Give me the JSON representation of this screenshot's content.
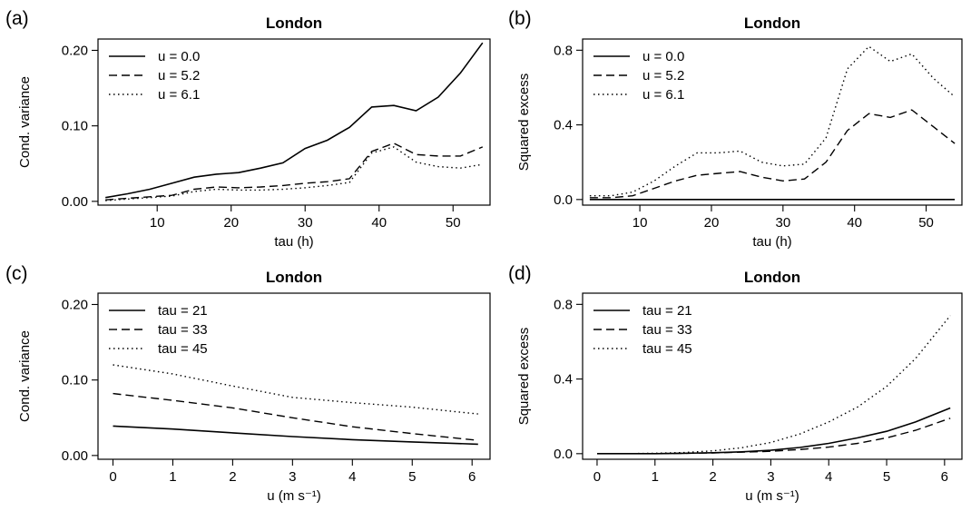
{
  "chart_data": [
    {
      "panel_label": "(a)",
      "type": "line",
      "title": "London",
      "xlabel": "tau (h)",
      "ylabel": "Cond. variance",
      "xlim": [
        2,
        55
      ],
      "ylim": [
        -0.005,
        0.215
      ],
      "xticks": [
        10,
        20,
        30,
        40,
        50
      ],
      "xtick_labels": [
        "10",
        "20",
        "30",
        "40",
        "50"
      ],
      "yticks": [
        0.0,
        0.1,
        0.2
      ],
      "ytick_labels": [
        "0.00",
        "0.10",
        "0.20"
      ],
      "legend_position": "top-left",
      "series": [
        {
          "name": "u = 0.0",
          "style": "solid",
          "x": [
            3,
            6,
            9,
            12,
            15,
            18,
            21,
            24,
            27,
            30,
            33,
            36,
            39,
            42,
            45,
            48,
            51,
            54
          ],
          "y": [
            0.005,
            0.01,
            0.016,
            0.024,
            0.032,
            0.036,
            0.038,
            0.044,
            0.051,
            0.07,
            0.081,
            0.098,
            0.125,
            0.127,
            0.12,
            0.138,
            0.17,
            0.21
          ]
        },
        {
          "name": "u = 5.2",
          "style": "dashed",
          "x": [
            3,
            6,
            9,
            12,
            15,
            18,
            21,
            24,
            27,
            30,
            33,
            36,
            39,
            42,
            45,
            48,
            51,
            54
          ],
          "y": [
            0.002,
            0.004,
            0.006,
            0.008,
            0.016,
            0.019,
            0.018,
            0.019,
            0.021,
            0.024,
            0.026,
            0.03,
            0.066,
            0.077,
            0.062,
            0.06,
            0.06,
            0.072
          ]
        },
        {
          "name": "u = 6.1",
          "style": "dotted",
          "x": [
            3,
            6,
            9,
            12,
            15,
            18,
            21,
            24,
            27,
            30,
            33,
            36,
            39,
            42,
            45,
            48,
            51,
            54
          ],
          "y": [
            0.001,
            0.003,
            0.005,
            0.007,
            0.013,
            0.016,
            0.015,
            0.015,
            0.016,
            0.018,
            0.021,
            0.025,
            0.064,
            0.072,
            0.052,
            0.046,
            0.044,
            0.049
          ]
        }
      ]
    },
    {
      "panel_label": "(b)",
      "type": "line",
      "title": "London",
      "xlabel": "tau (h)",
      "ylabel": "Squared excess",
      "xlim": [
        2,
        55
      ],
      "ylim": [
        -0.03,
        0.86
      ],
      "xticks": [
        10,
        20,
        30,
        40,
        50
      ],
      "xtick_labels": [
        "10",
        "20",
        "30",
        "40",
        "50"
      ],
      "yticks": [
        0.0,
        0.4,
        0.8
      ],
      "ytick_labels": [
        "0.0",
        "0.4",
        "0.8"
      ],
      "legend_position": "top-left",
      "series": [
        {
          "name": "u = 0.0",
          "style": "solid",
          "x": [
            3,
            54
          ],
          "y": [
            0.0,
            0.0
          ]
        },
        {
          "name": "u = 5.2",
          "style": "dashed",
          "x": [
            3,
            6,
            9,
            12,
            15,
            18,
            21,
            24,
            27,
            30,
            33,
            36,
            39,
            42,
            45,
            48,
            51,
            54
          ],
          "y": [
            0.01,
            0.01,
            0.02,
            0.06,
            0.1,
            0.13,
            0.14,
            0.15,
            0.12,
            0.1,
            0.11,
            0.2,
            0.37,
            0.46,
            0.44,
            0.48,
            0.39,
            0.3
          ]
        },
        {
          "name": "u = 6.1",
          "style": "dotted",
          "x": [
            3,
            6,
            9,
            12,
            15,
            18,
            21,
            24,
            27,
            30,
            33,
            36,
            39,
            42,
            45,
            48,
            51,
            54
          ],
          "y": [
            0.02,
            0.02,
            0.04,
            0.1,
            0.18,
            0.25,
            0.25,
            0.26,
            0.2,
            0.18,
            0.19,
            0.33,
            0.7,
            0.82,
            0.74,
            0.78,
            0.65,
            0.55
          ]
        }
      ]
    },
    {
      "panel_label": "(c)",
      "type": "line",
      "title": "London",
      "xlabel": "u (m s⁻¹)",
      "ylabel": "Cond. variance",
      "xlim": [
        -0.25,
        6.3
      ],
      "ylim": [
        -0.005,
        0.215
      ],
      "xticks": [
        0,
        1,
        2,
        3,
        4,
        5,
        6
      ],
      "xtick_labels": [
        "0",
        "1",
        "2",
        "3",
        "4",
        "5",
        "6"
      ],
      "yticks": [
        0.0,
        0.1,
        0.2
      ],
      "ytick_labels": [
        "0.00",
        "0.10",
        "0.20"
      ],
      "legend_position": "top-left",
      "series": [
        {
          "name": "tau = 21",
          "style": "solid",
          "x": [
            0,
            1,
            2,
            3,
            4,
            5,
            6.1
          ],
          "y": [
            0.039,
            0.035,
            0.03,
            0.025,
            0.021,
            0.018,
            0.015
          ]
        },
        {
          "name": "tau = 33",
          "style": "dashed",
          "x": [
            0,
            1,
            2,
            3,
            4,
            5,
            6.1
          ],
          "y": [
            0.082,
            0.073,
            0.063,
            0.05,
            0.038,
            0.029,
            0.02
          ]
        },
        {
          "name": "tau = 45",
          "style": "dotted",
          "x": [
            0,
            1,
            2,
            3,
            4,
            5,
            6.1
          ],
          "y": [
            0.12,
            0.108,
            0.092,
            0.077,
            0.07,
            0.064,
            0.055
          ]
        }
      ]
    },
    {
      "panel_label": "(d)",
      "type": "line",
      "title": "London",
      "xlabel": "u (m s⁻¹)",
      "ylabel": "Squared excess",
      "xlim": [
        -0.25,
        6.3
      ],
      "ylim": [
        -0.03,
        0.86
      ],
      "xticks": [
        0,
        1,
        2,
        3,
        4,
        5,
        6
      ],
      "xtick_labels": [
        "0",
        "1",
        "2",
        "3",
        "4",
        "5",
        "6"
      ],
      "yticks": [
        0.0,
        0.4,
        0.8
      ],
      "ytick_labels": [
        "0.0",
        "0.4",
        "0.8"
      ],
      "legend_position": "top-left",
      "series": [
        {
          "name": "tau = 21",
          "style": "solid",
          "x": [
            0,
            0.5,
            1,
            1.5,
            2,
            2.5,
            3,
            3.5,
            4,
            4.5,
            5,
            5.5,
            6.1
          ],
          "y": [
            0.0,
            0.0,
            0.0,
            0.002,
            0.005,
            0.01,
            0.018,
            0.033,
            0.055,
            0.085,
            0.12,
            0.17,
            0.245
          ]
        },
        {
          "name": "tau = 33",
          "style": "dashed",
          "x": [
            0,
            0.5,
            1,
            1.5,
            2,
            2.5,
            3,
            3.5,
            4,
            4.5,
            5,
            5.5,
            6.1
          ],
          "y": [
            0.0,
            0.0,
            0.0,
            0.002,
            0.004,
            0.008,
            0.013,
            0.022,
            0.035,
            0.055,
            0.085,
            0.125,
            0.19
          ]
        },
        {
          "name": "tau = 45",
          "style": "dotted",
          "x": [
            0,
            0.5,
            1,
            1.5,
            2,
            2.5,
            3,
            3.5,
            4,
            4.5,
            5,
            5.5,
            6.1
          ],
          "y": [
            0.0,
            0.0,
            0.002,
            0.006,
            0.015,
            0.032,
            0.06,
            0.105,
            0.17,
            0.25,
            0.36,
            0.51,
            0.74
          ]
        }
      ]
    }
  ]
}
